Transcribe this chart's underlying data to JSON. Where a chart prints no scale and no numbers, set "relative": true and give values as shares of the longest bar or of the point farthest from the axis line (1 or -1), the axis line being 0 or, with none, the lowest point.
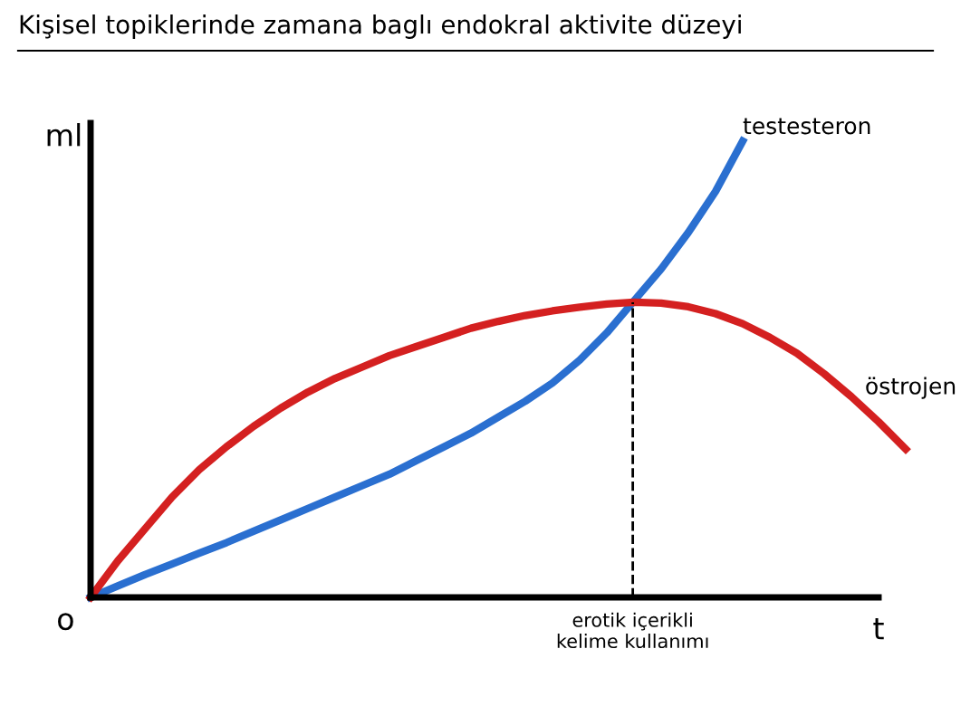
{
  "chart_data": {
    "type": "line",
    "title": "Kişisel topiklerinde zamana baglı endokral aktivite düzeyi",
    "relative": true,
    "xlabel": "t",
    "ylabel": "ml",
    "annotations": [
      "o",
      "erotik içerikli\nkelime kullanımı"
    ],
    "categories": [
      null,
      null,
      null,
      null,
      null,
      null,
      null,
      null,
      null,
      null,
      null,
      null,
      null,
      null,
      null,
      null,
      null,
      null,
      null,
      null,
      null,
      null,
      null,
      null,
      null,
      null,
      null,
      null,
      null,
      null,
      null
    ],
    "series": [
      {
        "name": "testesteron",
        "color": "#2a6fd0",
        "values": [
          0,
          0.025,
          0.05,
          0.073,
          0.097,
          0.12,
          0.145,
          0.17,
          0.195,
          0.22,
          0.245,
          0.27,
          0.3,
          0.33,
          0.36,
          0.395,
          0.43,
          0.47,
          0.52,
          0.58,
          0.65,
          0.72,
          0.8,
          0.89,
          1.0,
          null,
          null,
          null,
          null,
          null,
          null
        ]
      },
      {
        "name": "östrojen",
        "color": "#d42020",
        "values": [
          0,
          0.08,
          0.15,
          0.22,
          0.28,
          0.33,
          0.375,
          0.415,
          0.45,
          0.48,
          0.505,
          0.53,
          0.55,
          0.57,
          0.59,
          0.605,
          0.618,
          0.628,
          0.636,
          0.643,
          0.647,
          0.645,
          0.637,
          0.622,
          0.6,
          0.57,
          0.535,
          0.49,
          0.44,
          0.385,
          0.325
        ]
      }
    ],
    "legend": false
  }
}
